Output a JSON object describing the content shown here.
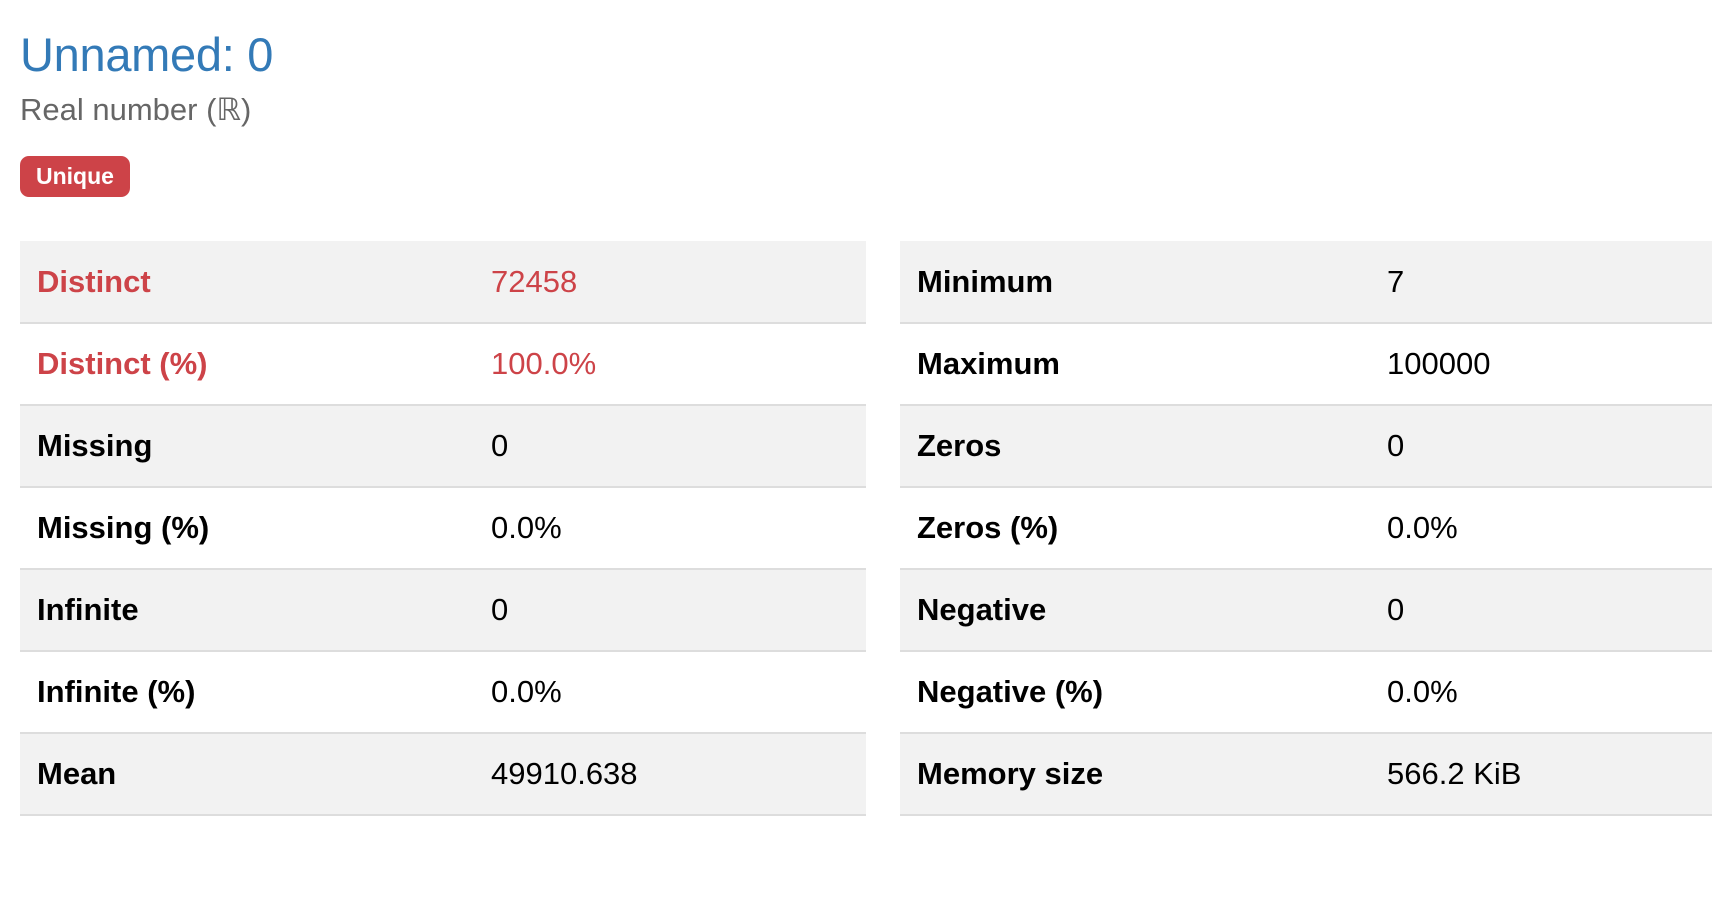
{
  "variable": {
    "name": "Unnamed: 0",
    "type": "Real number (ℝ)",
    "badge": "Unique"
  },
  "stats_left": [
    {
      "label": "Distinct",
      "value": "72458",
      "alert": true
    },
    {
      "label": "Distinct (%)",
      "value": "100.0%",
      "alert": true
    },
    {
      "label": "Missing",
      "value": "0",
      "alert": false
    },
    {
      "label": "Missing (%)",
      "value": "0.0%",
      "alert": false
    },
    {
      "label": "Infinite",
      "value": "0",
      "alert": false
    },
    {
      "label": "Infinite (%)",
      "value": "0.0%",
      "alert": false
    },
    {
      "label": "Mean",
      "value": "49910.638",
      "alert": false
    }
  ],
  "stats_right": [
    {
      "label": "Minimum",
      "value": "7"
    },
    {
      "label": "Maximum",
      "value": "100000"
    },
    {
      "label": "Zeros",
      "value": "0"
    },
    {
      "label": "Zeros (%)",
      "value": "0.0%"
    },
    {
      "label": "Negative",
      "value": "0"
    },
    {
      "label": "Negative (%)",
      "value": "0.0%"
    },
    {
      "label": "Memory size",
      "value": "566.2 KiB"
    }
  ],
  "colors": {
    "title": "#337ab7",
    "alert": "#cd4348",
    "row_stripe": "#f2f2f2"
  }
}
